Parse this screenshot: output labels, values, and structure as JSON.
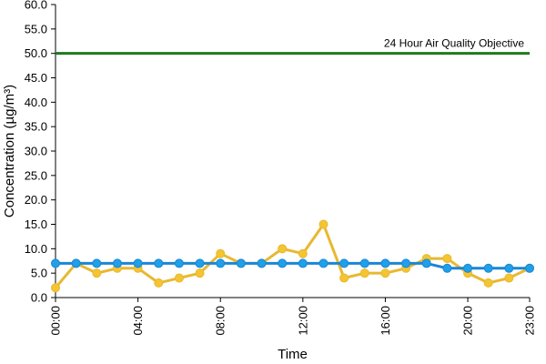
{
  "chart_data": {
    "type": "line",
    "title": "",
    "xlabel": "Time",
    "ylabel": "Concentration (µg/m³)",
    "ylim": [
      0,
      60
    ],
    "y_ticks": [
      "0.0",
      "5.0",
      "10.0",
      "15.0",
      "20.0",
      "25.0",
      "30.0",
      "35.0",
      "40.0",
      "45.0",
      "50.0",
      "55.0",
      "60.0"
    ],
    "x_tick_labels": [
      "00:00",
      "04:00",
      "08:00",
      "12:00",
      "16:00",
      "20:00",
      "23:00"
    ],
    "x_tick_hours": [
      0,
      4,
      8,
      12,
      16,
      20,
      23
    ],
    "x": [
      0,
      1,
      2,
      3,
      4,
      5,
      6,
      7,
      8,
      9,
      10,
      11,
      12,
      13,
      14,
      15,
      16,
      17,
      18,
      19,
      20,
      21,
      22,
      23
    ],
    "grid": false,
    "legend": "none",
    "series": [
      {
        "color": "#f5c431",
        "line_color": "#e8b830",
        "values": [
          2,
          7,
          5,
          6,
          6,
          3,
          4,
          5,
          9,
          7,
          7,
          10,
          9,
          15,
          4,
          5,
          5,
          6,
          8,
          8,
          5,
          3,
          4,
          6
        ]
      },
      {
        "color": "#1fa0e8",
        "line_color": "#1a86d6",
        "values": [
          7,
          7,
          7,
          7,
          7,
          7,
          7,
          7,
          7,
          7,
          7,
          7,
          7,
          7,
          7,
          7,
          7,
          7,
          7,
          6,
          6,
          6,
          6,
          6
        ]
      }
    ],
    "reference_line": {
      "value": 50,
      "label": "24 Hour Air Quality Objective",
      "color": "#1e7a1e"
    }
  }
}
